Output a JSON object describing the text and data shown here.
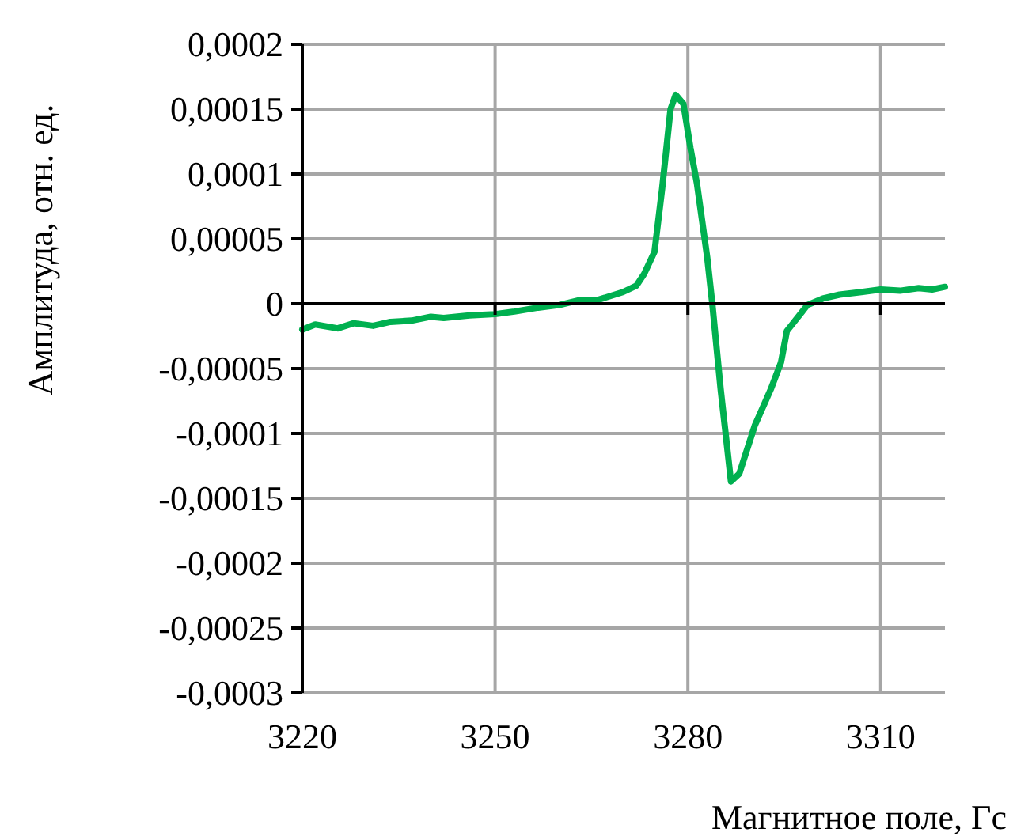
{
  "chart_data": {
    "type": "line",
    "xlabel": "Магнитное поле, Гс",
    "ylabel": "Амплитуда, отн. ед.",
    "x": [
      3220,
      3222,
      3225.5,
      3228,
      3231,
      3233.7,
      3237,
      3240,
      3242,
      3246,
      3250,
      3253,
      3256.7,
      3260,
      3263.3,
      3266,
      3269.9,
      3272,
      3273.2,
      3274.8,
      3276,
      3277.3,
      3278.1,
      3279.3,
      3280.4,
      3281.4,
      3283,
      3283.8,
      3285.1,
      3286.7,
      3288,
      3290.4,
      3292.9,
      3294.5,
      3295.4,
      3298.6,
      3301,
      3303.6,
      3307,
      3310,
      3313,
      3315.9,
      3318,
      3320
    ],
    "series": [
      {
        "color": "#00b050",
        "values": [
          -2e-05,
          -1.6e-05,
          -1.9e-05,
          -1.5e-05,
          -1.7e-05,
          -1.4e-05,
          -1.3e-05,
          -1e-05,
          -1.1e-05,
          -9e-06,
          -8e-06,
          -6e-06,
          -3e-06,
          -1e-06,
          3e-06,
          3e-06,
          9e-06,
          1.4e-05,
          2.3e-05,
          4e-05,
          8.9e-05,
          0.00015,
          0.000161,
          0.000154,
          0.00012,
          9.3e-05,
          3.6e-05,
          0,
          -6.6e-05,
          -0.000137,
          -0.000131,
          -9.4e-05,
          -6.6e-05,
          -4.5e-05,
          -2.1e-05,
          -1e-06,
          4e-06,
          7e-06,
          9e-06,
          1.1e-05,
          1e-05,
          1.2e-05,
          1.1e-05,
          1.3e-05
        ]
      }
    ],
    "xlim": [
      3220,
      3320
    ],
    "xticks": [
      3220,
      3250,
      3280,
      3310
    ],
    "ylim": [
      -0.0003,
      0.0002
    ],
    "yticks": [
      {
        "value": 0.0002,
        "label": "0,0002"
      },
      {
        "value": 0.00015,
        "label": "0,00015"
      },
      {
        "value": 0.0001,
        "label": "0,0001"
      },
      {
        "value": 5e-05,
        "label": "0,00005"
      },
      0,
      {
        "value": -5e-05,
        "label": "-0,00005"
      },
      {
        "value": -0.0001,
        "label": "-0,0001"
      },
      {
        "value": -0.00015,
        "label": "-0,00015"
      },
      {
        "value": -0.0002,
        "label": "-0,0002"
      },
      {
        "value": -0.00025,
        "label": "-0,00025"
      },
      {
        "value": -0.0003,
        "label": "-0,0003"
      }
    ],
    "grid": true,
    "marker": "none",
    "line_style": "solid"
  }
}
